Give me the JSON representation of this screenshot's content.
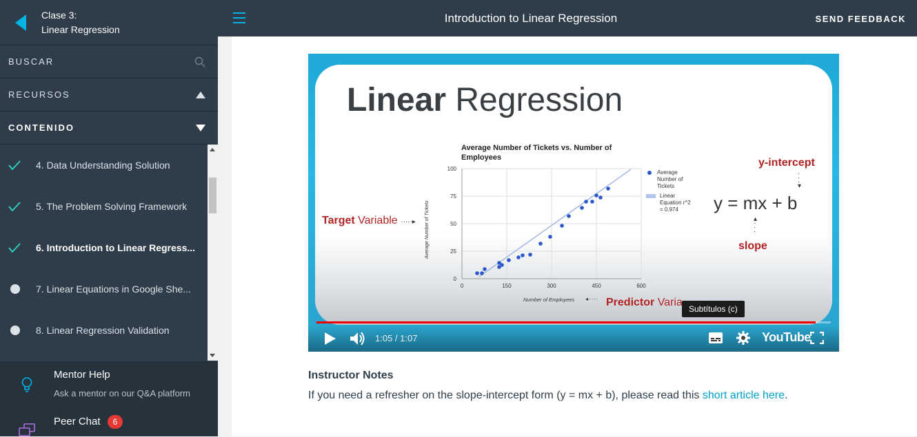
{
  "sidebar": {
    "class_label": "Clase 3:",
    "course_title": "Linear Regression",
    "search_label": "BUSCAR",
    "resources_label": "RECURSOS",
    "content_label": "CONTENIDO",
    "lessons": [
      {
        "label": "4. Data Understanding Solution",
        "status": "done"
      },
      {
        "label": "5. The Problem Solving Framework",
        "status": "done"
      },
      {
        "label": "6. Introduction to Linear Regress...",
        "status": "done"
      },
      {
        "label": "7. Linear Equations in Google She...",
        "status": "todo"
      },
      {
        "label": "8. Linear Regression Validation",
        "status": "todo"
      }
    ],
    "mentor_title": "Mentor Help",
    "mentor_sub": "Ask a mentor on our Q&A platform",
    "peer_title": "Peer Chat",
    "peer_badge": "6"
  },
  "topbar": {
    "title": "Introduction to Linear Regression",
    "feedback": "SEND FEEDBACK"
  },
  "video": {
    "slide_title_bold": "Linear",
    "slide_title_rest": " Regression",
    "chart_title": "Average Number of Tickets vs. Number of Employees",
    "y_ticks": [
      "100",
      "75",
      "50",
      "25",
      "0"
    ],
    "x_ticks": [
      "0",
      "150",
      "300",
      "450",
      "600"
    ],
    "y_axis_label": "Average Number of Tickets",
    "x_axis_label": "Number of Employees",
    "legend_points": "Average Number of Tickets",
    "legend_line": "Linear Equation r^2 = 0.974",
    "target_bold": "Target",
    "target_rest": " Variable",
    "predictor_bold": "Predictor",
    "predictor_rest": " Varia",
    "y_intercept": "y-intercept",
    "slope": "slope",
    "equation": "y = mx + b",
    "tooltip": "Subtítulos (c)",
    "time": "1:05 / 1:07",
    "progress": 0.97,
    "youtube": "YouTube"
  },
  "notes": {
    "heading": "Instructor Notes",
    "text": "If you need a refresher on the slope-intercept form (y = mx + b), please read this ",
    "link": "short article here",
    "after": "."
  },
  "colors": {
    "sidebar_bg": "#2e3d49",
    "accent": "#02b3e4",
    "check": "#2fd4c4",
    "red": "#b22222"
  }
}
